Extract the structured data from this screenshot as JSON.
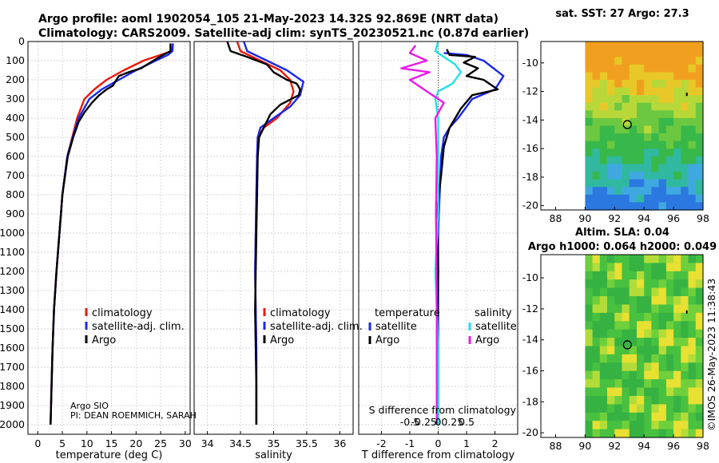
{
  "title": {
    "line1": "Argo profile: aoml 1902054_105 21-May-2023 14.32S 92.869E (NRT data)",
    "line2": "Climatology: CARS2009. Satellite-adj clim: synTS_20230521.nc (0.87d earlier)"
  },
  "colors": {
    "climatology": "#e8190a",
    "satellite": "#1c28e8",
    "argo": "#000000",
    "sal_satellite": "#22e0e8",
    "sal_argo": "#e81ce8"
  },
  "watermark": "©IMOS 26-May-2023 11:38:43",
  "chart_data": [
    {
      "type": "line",
      "name": "temperature",
      "xlabel": "temperature (deg C)",
      "ylabel": "",
      "xlim": [
        -2,
        31
      ],
      "ylim": [
        2050,
        0
      ],
      "xticks": [
        0,
        5,
        10,
        15,
        20,
        25,
        30
      ],
      "yticks": [
        0,
        100,
        200,
        300,
        400,
        500,
        600,
        700,
        800,
        900,
        1000,
        1100,
        1200,
        1300,
        1400,
        1500,
        1600,
        1700,
        1800,
        1900,
        2000
      ],
      "legend": {
        "items": [
          "climatology",
          "satellite-adj. clim.",
          "Argo"
        ],
        "placement": "lower-right"
      },
      "annotation": [
        "Argo SIO",
        "PI: DEAN ROEMMICH, SARAH"
      ],
      "series": [
        {
          "name": "climatology",
          "color": "#e8190a",
          "x": [
            27.5,
            27.3,
            25.0,
            21.5,
            17.5,
            14.0,
            11.5,
            9.5,
            8.0,
            7.0,
            6.0,
            5.0,
            4.4,
            3.8,
            3.3,
            3.0,
            2.8,
            2.6
          ],
          "y": [
            10,
            50,
            70,
            100,
            150,
            200,
            250,
            300,
            400,
            500,
            600,
            800,
            1000,
            1200,
            1400,
            1600,
            1800,
            2000
          ]
        },
        {
          "name": "satellite-adj. clim.",
          "color": "#1c28e8",
          "x": [
            27.5,
            27.4,
            26.5,
            24.0,
            20.0,
            16.5,
            13.0,
            10.5,
            8.3,
            7.1,
            6.0,
            5.0,
            4.4,
            3.8,
            3.3,
            3.0,
            2.8,
            2.6
          ],
          "y": [
            10,
            50,
            70,
            100,
            150,
            200,
            250,
            300,
            400,
            500,
            600,
            800,
            1000,
            1200,
            1400,
            1600,
            1800,
            2000
          ]
        },
        {
          "name": "Argo",
          "color": "#000000",
          "x": [
            27.0,
            27.0,
            25.5,
            23.5,
            21.0,
            18.5,
            16.5,
            16.0,
            15.3,
            14.0,
            12.5,
            11.0,
            9.5,
            8.3,
            7.2,
            6.1,
            5.0,
            4.4,
            3.8,
            3.3,
            3.0,
            2.8,
            2.6
          ],
          "y": [
            10,
            50,
            70,
            100,
            140,
            160,
            180,
            200,
            230,
            250,
            280,
            320,
            370,
            420,
            500,
            600,
            800,
            1000,
            1200,
            1400,
            1600,
            1800,
            2000
          ]
        }
      ]
    },
    {
      "type": "line",
      "name": "salinity",
      "xlabel": "salinity",
      "ylabel": "",
      "xlim": [
        33.8,
        36.2
      ],
      "ylim": [
        2050,
        0
      ],
      "xticks": [
        34,
        34.5,
        35,
        35.5,
        36
      ],
      "legend": {
        "items": [
          "climatology",
          "satellite-adj. clim.",
          "Argo"
        ],
        "placement": "lower-right"
      },
      "series": [
        {
          "name": "climatology",
          "color": "#e8190a",
          "x": [
            34.45,
            34.5,
            34.8,
            35.1,
            35.25,
            35.3,
            35.25,
            35.05,
            34.85,
            34.76,
            34.75,
            34.74,
            34.73,
            34.72,
            34.73,
            34.74,
            34.74,
            34.74
          ],
          "y": [
            0,
            50,
            100,
            150,
            200,
            260,
            320,
            400,
            450,
            500,
            600,
            800,
            1000,
            1200,
            1400,
            1600,
            1800,
            2000
          ]
        },
        {
          "name": "satellite-adj. clim.",
          "color": "#1c28e8",
          "x": [
            34.55,
            34.6,
            34.9,
            35.2,
            35.45,
            35.4,
            35.25,
            35.0,
            34.8,
            34.76,
            34.75,
            34.74,
            34.73,
            34.72,
            34.73,
            34.74,
            34.74,
            34.74
          ],
          "y": [
            0,
            50,
            100,
            150,
            210,
            280,
            340,
            400,
            450,
            500,
            600,
            800,
            1000,
            1200,
            1400,
            1600,
            1800,
            2000
          ]
        },
        {
          "name": "Argo",
          "color": "#000000",
          "x": [
            34.3,
            34.35,
            34.6,
            34.9,
            35.0,
            35.1,
            35.2,
            35.35,
            35.4,
            35.38,
            35.1,
            34.95,
            34.85,
            34.78,
            34.76,
            34.75,
            34.74,
            34.73,
            34.72,
            34.73,
            34.74,
            34.74
          ],
          "y": [
            0,
            50,
            80,
            120,
            160,
            180,
            200,
            220,
            250,
            280,
            330,
            380,
            450,
            500,
            600,
            800,
            1000,
            1200,
            1400,
            1600,
            1800,
            2000
          ]
        }
      ]
    },
    {
      "type": "line",
      "name": "difference",
      "xlabel": "T difference from climatology",
      "top_axis_label": "S difference from climatology",
      "xlim": [
        -2.8,
        2.8
      ],
      "ylim": [
        2050,
        0
      ],
      "xticks": [
        -2,
        -1,
        0,
        1,
        2
      ],
      "top_xticks": [
        "-0.5",
        "-0.25",
        "0",
        "0.25",
        "0.5"
      ],
      "legend": {
        "temperature_header": "temperature",
        "salinity_header": "salinity",
        "items": [
          "satellite",
          "Argo",
          "satellite",
          "Argo"
        ],
        "placement": "lower-right"
      },
      "series": [
        {
          "name": "T satellite",
          "color": "#1c28e8",
          "x": [
            0.2,
            1.0,
            1.6,
            2.3,
            2.0,
            1.2,
            0.7,
            0.4,
            0.2,
            0.1,
            0.05,
            0.0,
            0.0,
            0.0,
            0.0,
            0.0
          ],
          "y": [
            60,
            70,
            100,
            180,
            250,
            300,
            400,
            450,
            500,
            600,
            800,
            1000,
            1200,
            1400,
            1600,
            2000
          ]
        },
        {
          "name": "T Argo",
          "color": "#000000",
          "x": [
            0.3,
            0.4,
            1.3,
            0.9,
            1.4,
            1.0,
            1.6,
            2.1,
            1.2,
            0.8,
            0.4,
            0.2,
            0.1,
            -0.05,
            0.0,
            -0.05,
            0.0
          ],
          "y": [
            40,
            70,
            80,
            110,
            140,
            180,
            200,
            250,
            280,
            350,
            450,
            550,
            700,
            900,
            1200,
            1600,
            2000
          ]
        },
        {
          "name": "S satellite",
          "color": "#22e0e8",
          "x": [
            0.0,
            -0.1,
            0.2,
            0.6,
            0.8,
            0.5,
            0.0,
            -0.1,
            0.0,
            0.0,
            0.0,
            -0.1,
            0.0,
            0.0
          ],
          "y": [
            0,
            50,
            80,
            120,
            160,
            220,
            260,
            300,
            400,
            600,
            900,
            1200,
            1600,
            2000
          ]
        },
        {
          "name": "S Argo",
          "color": "#e81ce8",
          "x": [
            -0.8,
            -1.0,
            -0.4,
            -1.3,
            -0.3,
            -1.0,
            -0.2,
            0.2,
            -0.1,
            -0.05,
            -0.08,
            -0.05,
            -0.05,
            -0.05
          ],
          "y": [
            20,
            60,
            100,
            140,
            160,
            200,
            280,
            320,
            400,
            600,
            900,
            1300,
            1700,
            2000
          ]
        }
      ]
    },
    {
      "type": "heatmap",
      "name": "sst-map",
      "title": "sat. SST: 27 Argo: 27.3",
      "xlim": [
        87,
        98
      ],
      "ylim": [
        -20.3,
        -8.5
      ],
      "xticks": [
        88,
        90,
        92,
        94,
        96,
        98
      ],
      "yticks": [
        -10,
        -12,
        -14,
        -16,
        -18,
        -20
      ],
      "data_xlim": [
        90,
        98
      ],
      "argo_position": [
        92.869,
        -14.32
      ],
      "marker_dot": [
        96.9,
        -12.2
      ]
    },
    {
      "type": "heatmap",
      "name": "sla-map",
      "title": "Altim. SLA: 0.04",
      "subtitle": "Argo h1000: 0.064 h2000: 0.049",
      "xlim": [
        87,
        98
      ],
      "ylim": [
        -20.3,
        -8.5
      ],
      "xticks": [
        88,
        90,
        92,
        94,
        96,
        98
      ],
      "yticks": [
        -10,
        -12,
        -14,
        -16,
        -18,
        -20
      ],
      "data_xlim": [
        90,
        98
      ],
      "argo_position": [
        92.869,
        -14.32
      ],
      "marker_dot": [
        96.9,
        -12.2
      ]
    }
  ]
}
